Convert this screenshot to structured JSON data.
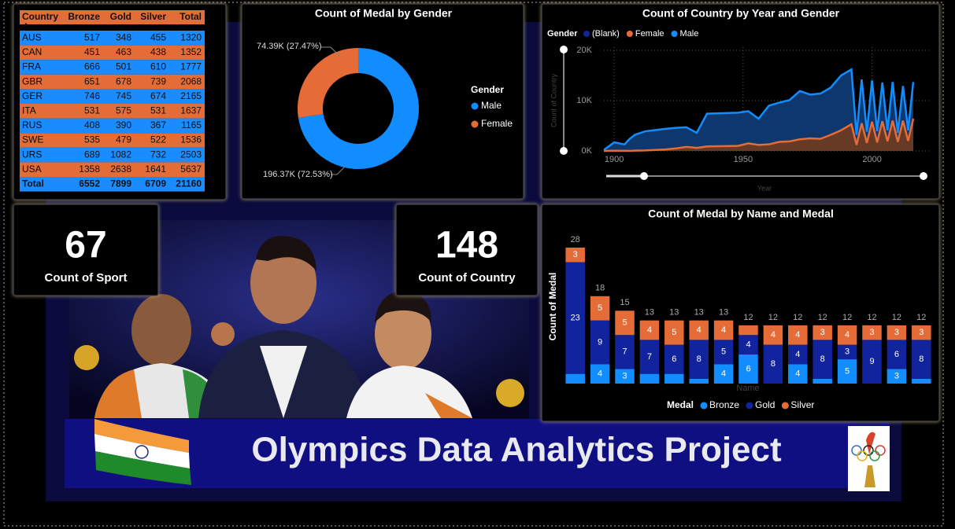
{
  "table": {
    "columns": [
      "Country",
      "Bronze",
      "Gold",
      "Silver",
      "Total"
    ],
    "rows": [
      [
        "AUS",
        517,
        348,
        455,
        1320
      ],
      [
        "CAN",
        451,
        463,
        438,
        1352
      ],
      [
        "FRA",
        666,
        501,
        610,
        1777
      ],
      [
        "GBR",
        651,
        678,
        739,
        2068
      ],
      [
        "GER",
        746,
        745,
        674,
        2165
      ],
      [
        "ITA",
        531,
        575,
        531,
        1637
      ],
      [
        "RUS",
        408,
        390,
        367,
        1165
      ],
      [
        "SWE",
        535,
        479,
        522,
        1536
      ],
      [
        "URS",
        689,
        1082,
        732,
        2503
      ],
      [
        "USA",
        1358,
        2638,
        1641,
        5637
      ]
    ],
    "total": [
      "Total",
      6552,
      7899,
      6709,
      21160
    ]
  },
  "cards": [
    {
      "value": 67,
      "label": "Count of Sport"
    },
    {
      "value": 148,
      "label": "Count of Country"
    }
  ],
  "banner": {
    "title": "Olympics Data Analytics Project"
  },
  "chart_data": [
    {
      "type": "pie",
      "donut": true,
      "title": "Count of Medal by Gender",
      "legend_title": "Gender",
      "categories": [
        "Male",
        "Female"
      ],
      "values": [
        196370,
        74390
      ],
      "value_labels": [
        "196.37K (72.53%)",
        "74.39K (27.47%)"
      ],
      "colors": [
        "#118DFF",
        "#E66C37"
      ]
    },
    {
      "type": "area",
      "title": "Count of Country by Year and Gender",
      "legend_title": "Gender",
      "xlabel": "Year",
      "ylabel": "Count of Country",
      "grid": true,
      "x": [
        1896,
        1900,
        1904,
        1906,
        1908,
        1912,
        1920,
        1924,
        1928,
        1932,
        1936,
        1948,
        1952,
        1956,
        1960,
        1964,
        1968,
        1972,
        1976,
        1980,
        1984,
        1988,
        1992,
        1994,
        1996,
        1998,
        2000,
        2002,
        2004,
        2006,
        2008,
        2010,
        2012,
        2014,
        2016
      ],
      "series": [
        {
          "name": "(Blank)",
          "color": "#12239E",
          "values": [
            null,
            null,
            null,
            null,
            null,
            null,
            null,
            null,
            null,
            null,
            null,
            null,
            null,
            null,
            null,
            null,
            null,
            null,
            null,
            null,
            null,
            null,
            null,
            null,
            null,
            null,
            null,
            null,
            null,
            null,
            null,
            null,
            null,
            null,
            null
          ]
        },
        {
          "name": "Female",
          "color": "#E66C37",
          "values": [
            0,
            30,
            10,
            10,
            60,
            100,
            300,
            500,
            800,
            600,
            900,
            1000,
            1500,
            1200,
            1300,
            1800,
            1900,
            2300,
            2500,
            2400,
            3200,
            4100,
            5300,
            1200,
            5500,
            1600,
            5800,
            1700,
            5900,
            1900,
            6000,
            1800,
            6000,
            2000,
            6400
          ]
        },
        {
          "name": "Male",
          "color": "#118DFF",
          "values": [
            200,
            1700,
            1300,
            2400,
            3200,
            3900,
            4400,
            4600,
            4700,
            3600,
            7400,
            7600,
            7900,
            6400,
            9000,
            9600,
            10100,
            11900,
            11200,
            11400,
            12600,
            15000,
            16200,
            3200,
            14200,
            3800,
            14000,
            3900,
            13600,
            4100,
            13700,
            3600,
            12900,
            4100,
            13700
          ]
        }
      ],
      "xlim": [
        1896,
        2016
      ],
      "xticks": [
        1900,
        1950,
        2000
      ],
      "ylim": [
        0,
        20000
      ],
      "yticks": [
        {
          "value": 0,
          "label": "0K"
        },
        {
          "value": 10000,
          "label": "10K"
        },
        {
          "value": 20000,
          "label": "20K"
        }
      ]
    },
    {
      "type": "stacked_bar",
      "title": "Count of Medal by Name and Medal",
      "legend_title": "Medal",
      "xlabel": "Name",
      "ylabel": "Count of Medal",
      "categories": [
        null,
        null,
        null,
        null,
        null,
        null,
        null,
        null,
        null,
        null,
        null,
        null,
        null,
        null,
        null
      ],
      "series": [
        {
          "name": "Bronze",
          "color": "#118DFF",
          "values": [
            2,
            4,
            3,
            2,
            2,
            1,
            4,
            6,
            0,
            4,
            1,
            5,
            0,
            3,
            1
          ]
        },
        {
          "name": "Gold",
          "color": "#12239E",
          "values": [
            23,
            9,
            7,
            7,
            6,
            8,
            5,
            4,
            8,
            4,
            8,
            3,
            9,
            6,
            8
          ]
        },
        {
          "name": "Silver",
          "color": "#E66C37",
          "values": [
            3,
            5,
            5,
            4,
            5,
            4,
            4,
            2,
            4,
            4,
            3,
            4,
            3,
            3,
            3
          ]
        }
      ],
      "totals": [
        28,
        18,
        15,
        13,
        13,
        13,
        13,
        12,
        12,
        12,
        12,
        12,
        12,
        12,
        12
      ]
    }
  ]
}
